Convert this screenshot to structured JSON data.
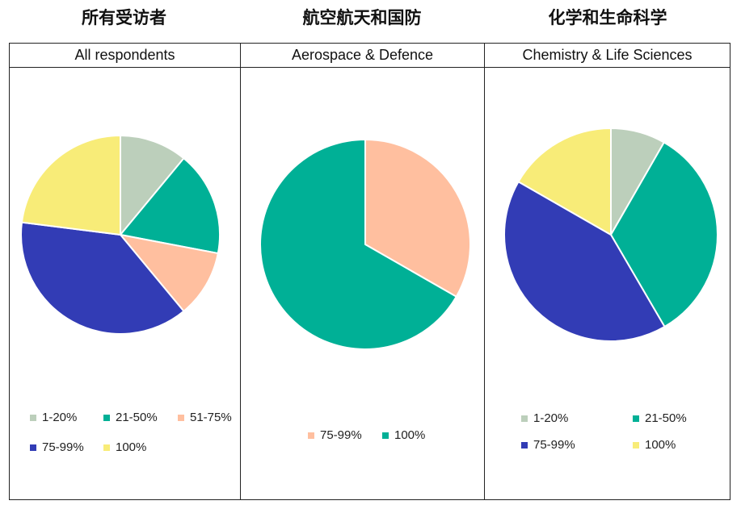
{
  "titles_zh": [
    "所有受访者",
    "航空航天和国防",
    "化学和生命科学"
  ],
  "chart_data": [
    {
      "type": "pie",
      "title": "All respondents",
      "labels": [
        "1-20%",
        "21-50%",
        "51-75%",
        "75-99%",
        "100%"
      ],
      "values": [
        11,
        17,
        11,
        38,
        23
      ],
      "colors": [
        "#bccfbb",
        "#00b096",
        "#ffbf9f",
        "#323cb5",
        "#f8ec78"
      ],
      "legend_position": "bottom"
    },
    {
      "type": "pie",
      "title": "Aerospace & Defence",
      "labels": [
        "75-99%",
        "100%"
      ],
      "values": [
        33.3,
        66.7
      ],
      "colors": [
        "#ffbf9f",
        "#00b096"
      ],
      "legend_position": "bottom"
    },
    {
      "type": "pie",
      "title": "Chemistry & Life Sciences",
      "labels": [
        "1-20%",
        "21-50%",
        "75-99%",
        "100%"
      ],
      "values": [
        8.3,
        33.3,
        41.7,
        16.7
      ],
      "colors": [
        "#bccfbb",
        "#00b096",
        "#323cb5",
        "#f8ec78"
      ],
      "legend_position": "bottom"
    }
  ]
}
